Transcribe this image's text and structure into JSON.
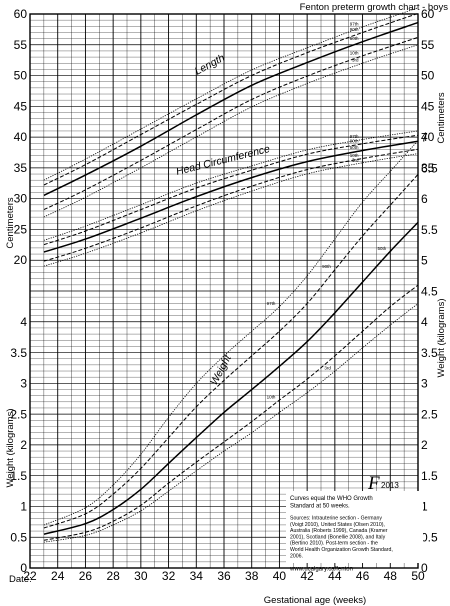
{
  "chart_data": {
    "type": "line",
    "title": "Fenton preterm growth chart - boys",
    "xlabel": "Gestational age (weeks)",
    "date_label": "Date:",
    "x_ticks": [
      22,
      24,
      26,
      28,
      30,
      32,
      34,
      36,
      38,
      40,
      42,
      44,
      46,
      48,
      50
    ],
    "xlim": [
      22,
      50
    ],
    "left_axis": {
      "upper_label": "Centimeters",
      "lower_label": "Weight (kilograms)",
      "cm_ticks": [
        20,
        25,
        30,
        35,
        40,
        45,
        50,
        55,
        60
      ],
      "kg_ticks": [
        "0",
        "0.5",
        "1",
        "1.5",
        "2",
        "2.5",
        "3",
        "3.5",
        "4"
      ]
    },
    "right_axis": {
      "upper_label": "Centimeters",
      "lower_label": "Weight (kilograms)",
      "cm_ticks": [
        35,
        40,
        45,
        50,
        55,
        60
      ],
      "kg_ticks": [
        "0",
        "0.5",
        "1",
        "1.5",
        "2",
        "2.5",
        "3",
        "3.5",
        "4",
        "4.5",
        "5",
        "5.5",
        "6",
        "6.5",
        "7"
      ]
    },
    "percentile_labels": [
      "3rd",
      "10th",
      "50th",
      "90th",
      "97th"
    ],
    "groups": [
      {
        "name": "Length",
        "unit": "cm",
        "x": [
          23,
          26,
          30,
          34,
          38,
          42,
          46,
          50
        ],
        "series": [
          {
            "percentile": "97th",
            "values": [
              33,
              36.4,
              41.3,
              46.2,
              50.9,
              54.5,
              57.9,
              61
            ]
          },
          {
            "percentile": "90th",
            "values": [
              32.2,
              35.5,
              40.4,
              45.3,
              50,
              53.7,
              57,
              60.1
            ]
          },
          {
            "percentile": "50th",
            "values": [
              30.5,
              33.8,
              38.5,
              43.6,
              48.4,
              52.1,
              55.5,
              58.6
            ]
          },
          {
            "percentile": "10th",
            "values": [
              28.2,
              31.4,
              36.2,
              41.2,
              46.1,
              49.9,
              53.2,
              56.2
            ]
          },
          {
            "percentile": "3rd",
            "values": [
              27,
              30.2,
              35,
              40,
              44.9,
              48.7,
              52,
              55
            ]
          }
        ]
      },
      {
        "name": "Head Circumference",
        "unit": "cm",
        "x": [
          23,
          26,
          30,
          34,
          38,
          42,
          46,
          50
        ],
        "series": [
          {
            "percentile": "97th",
            "values": [
              23.2,
              25.5,
              29,
              32.5,
              35.3,
              37.9,
              39.6,
              41
            ]
          },
          {
            "percentile": "90th",
            "values": [
              22.5,
              24.7,
              28.2,
              31.7,
              34.6,
              37.2,
              38.9,
              40.3
            ]
          },
          {
            "percentile": "50th",
            "values": [
              21.3,
              23.4,
              26.8,
              30.3,
              33.4,
              36,
              37.8,
              39.3
            ]
          },
          {
            "percentile": "10th",
            "values": [
              19.8,
              21.9,
              25.2,
              28.8,
              32,
              34.7,
              36.5,
              38
            ]
          },
          {
            "percentile": "3rd",
            "values": [
              19,
              21.1,
              24.4,
              28,
              31.2,
              34,
              35.8,
              37.3
            ]
          }
        ]
      },
      {
        "name": "Weight",
        "unit": "kg",
        "x": [
          23,
          26,
          28,
          30,
          32,
          34,
          36,
          38,
          40,
          42,
          44,
          46,
          48,
          50
        ],
        "series": [
          {
            "percentile": "97th",
            "values": [
              0.7,
              0.98,
              1.35,
              1.85,
              2.45,
              3.0,
              3.45,
              3.85,
              4.25,
              4.75,
              5.35,
              5.95,
              6.45,
              6.95
            ]
          },
          {
            "percentile": "90th",
            "values": [
              0.65,
              0.88,
              1.2,
              1.62,
              2.12,
              2.62,
              3.05,
              3.45,
              3.85,
              4.3,
              4.85,
              5.4,
              5.9,
              6.4
            ]
          },
          {
            "percentile": "50th",
            "values": [
              0.55,
              0.72,
              0.95,
              1.28,
              1.7,
              2.12,
              2.53,
              2.9,
              3.28,
              3.68,
              4.15,
              4.65,
              5.15,
              5.62
            ]
          },
          {
            "percentile": "10th",
            "values": [
              0.45,
              0.58,
              0.76,
              1.02,
              1.38,
              1.72,
              2.05,
              2.38,
              2.73,
              3.07,
              3.45,
              3.85,
              4.25,
              4.6
            ]
          },
          {
            "percentile": "3rd",
            "values": [
              0.42,
              0.53,
              0.7,
              0.93,
              1.25,
              1.58,
              1.9,
              2.2,
              2.53,
              2.85,
              3.2,
              3.58,
              3.95,
              4.3
            ]
          }
        ]
      }
    ],
    "grid": true,
    "legend": "none"
  },
  "note": {
    "headline": "Curves equal the WHO Growth Standard at 50 weeks.",
    "sources": "Sources: Intrauterine section - Germany (Voigt 2010), United States (Olsen 2010), Australia (Roberts 1999), Canada (Kramer 2001), Scotland (Bonellie 2008), and Italy (Bertino 2010). Post-term section - the World Health Organization Growth Standard, 2006.",
    "url": "www.ucalgary.ca/fenton"
  },
  "logo": {
    "mark": "F",
    "year": "2013"
  }
}
